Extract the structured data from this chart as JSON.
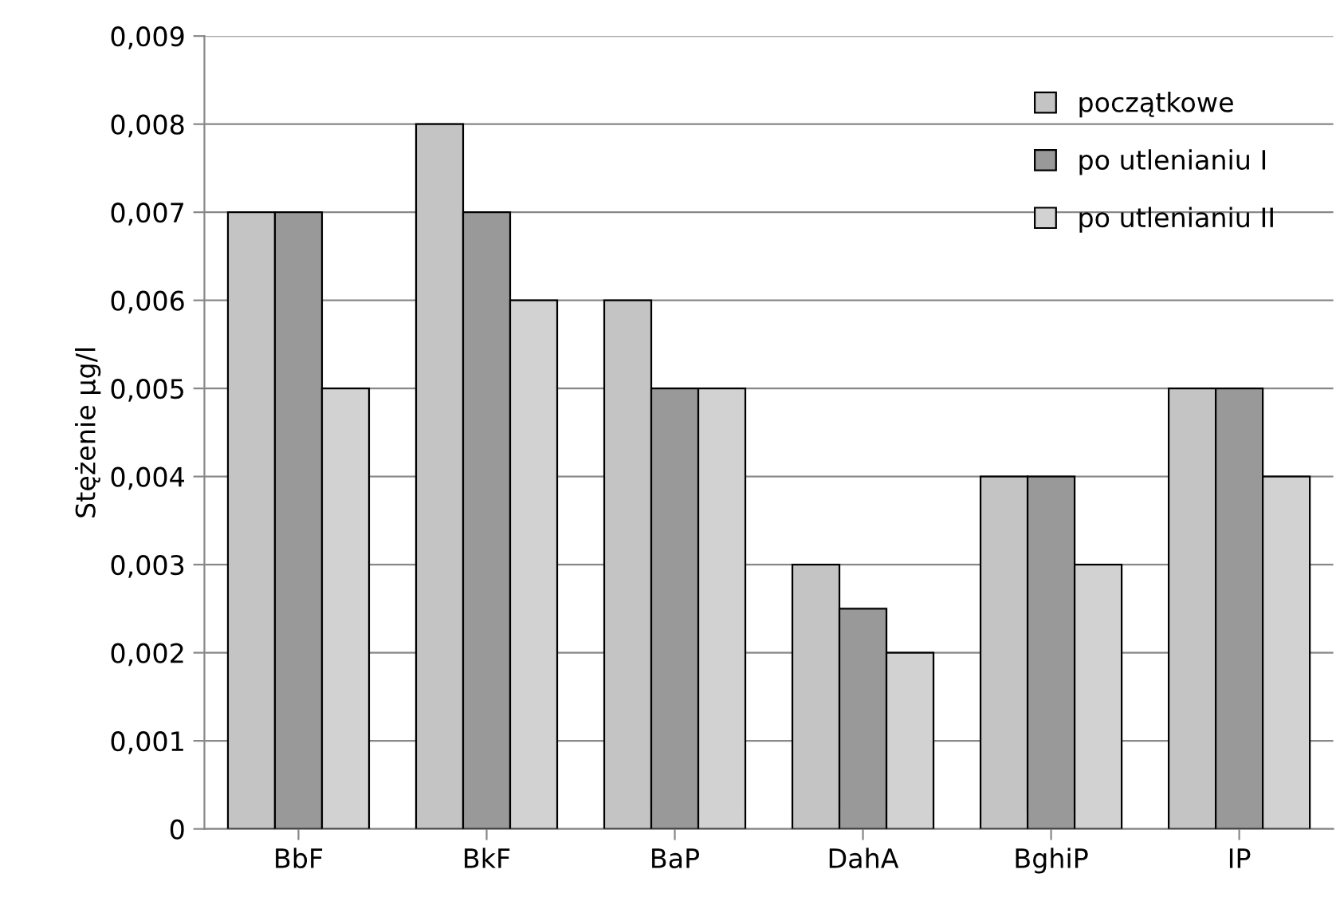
{
  "chart_data": {
    "type": "bar",
    "ylabel": "Stężenie µg/l",
    "categories": [
      "BbF",
      "BkF",
      "BaP",
      "DahA",
      "BghiP",
      "IP"
    ],
    "series": [
      {
        "name": "początkowe",
        "color": "#c4c4c4",
        "values": [
          0.007,
          0.008,
          0.006,
          0.003,
          0.004,
          0.005
        ]
      },
      {
        "name": "po utlenianiu I",
        "color": "#999999",
        "values": [
          0.007,
          0.007,
          0.005,
          0.0025,
          0.004,
          0.005
        ]
      },
      {
        "name": "po utlenianiu II",
        "color": "#d2d2d2",
        "values": [
          0.005,
          0.006,
          0.005,
          0.002,
          0.003,
          0.004
        ]
      }
    ],
    "ylim": [
      0,
      0.009
    ],
    "yticks": [
      {
        "value": 0,
        "label": "0"
      },
      {
        "value": 0.001,
        "label": "0,001"
      },
      {
        "value": 0.002,
        "label": "0,002"
      },
      {
        "value": 0.003,
        "label": "0,003"
      },
      {
        "value": 0.004,
        "label": "0,004"
      },
      {
        "value": 0.005,
        "label": "0,005"
      },
      {
        "value": 0.006,
        "label": "0,006"
      },
      {
        "value": 0.007,
        "label": "0,007"
      },
      {
        "value": 0.008,
        "label": "0,008"
      },
      {
        "value": 0.009,
        "label": "0,009"
      }
    ],
    "grid": "y",
    "legend": "top right"
  }
}
